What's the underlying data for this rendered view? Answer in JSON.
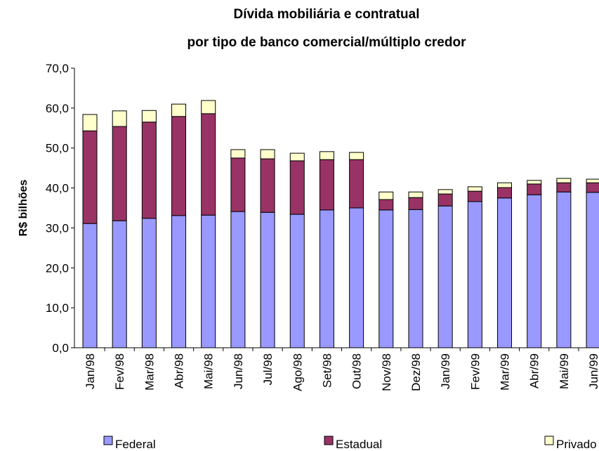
{
  "chart_data": {
    "type": "stacked-bar",
    "title": "Dívida mobiliária e contratual",
    "subtitle": "por tipo de banco comercial/múltiplo credor",
    "y_label": "R$ bilhões",
    "categories": [
      "Jan/98",
      "Fev/98",
      "Mar/98",
      "Abr/98",
      "Mai/98",
      "Jun/98",
      "Jul/98",
      "Ago/98",
      "Set/98",
      "Out/98",
      "Nov/98",
      "Dez/98",
      "Jan/99",
      "Fev/99",
      "Mar/99",
      "Abr/99",
      "Mai/99",
      "Jun/99"
    ],
    "series": [
      {
        "name": "Federal",
        "color": "#9999ff",
        "values": [
          31.1,
          31.8,
          32.4,
          33.1,
          33.2,
          34.1,
          33.9,
          33.4,
          34.5,
          35.0,
          34.5,
          34.6,
          35.5,
          36.6,
          37.5,
          38.3,
          39.0,
          38.9
        ]
      },
      {
        "name": "Estadual",
        "color": "#993366",
        "values": [
          23.2,
          23.6,
          24.1,
          24.8,
          25.4,
          13.4,
          13.4,
          13.4,
          12.6,
          12.1,
          2.6,
          3.0,
          3.0,
          2.6,
          2.6,
          2.7,
          2.3,
          2.4
        ]
      },
      {
        "name": "Privado",
        "color": "#ffffcc",
        "values": [
          4.1,
          3.9,
          2.9,
          3.1,
          3.3,
          2.1,
          2.3,
          1.9,
          2.0,
          1.8,
          1.9,
          1.4,
          1.1,
          1.1,
          1.2,
          0.9,
          1.1,
          0.9
        ]
      }
    ],
    "ylim": [
      0,
      70
    ],
    "yticks": [
      {
        "value": 0,
        "label": "0,0"
      },
      {
        "value": 10,
        "label": "10,0"
      },
      {
        "value": 20,
        "label": "20,0"
      },
      {
        "value": 30,
        "label": "30,0"
      },
      {
        "value": 40,
        "label": "40,0"
      },
      {
        "value": 50,
        "label": "50,0"
      },
      {
        "value": 60,
        "label": "60,0"
      },
      {
        "value": 70,
        "label": "70,0"
      }
    ],
    "legend": "bottom"
  }
}
